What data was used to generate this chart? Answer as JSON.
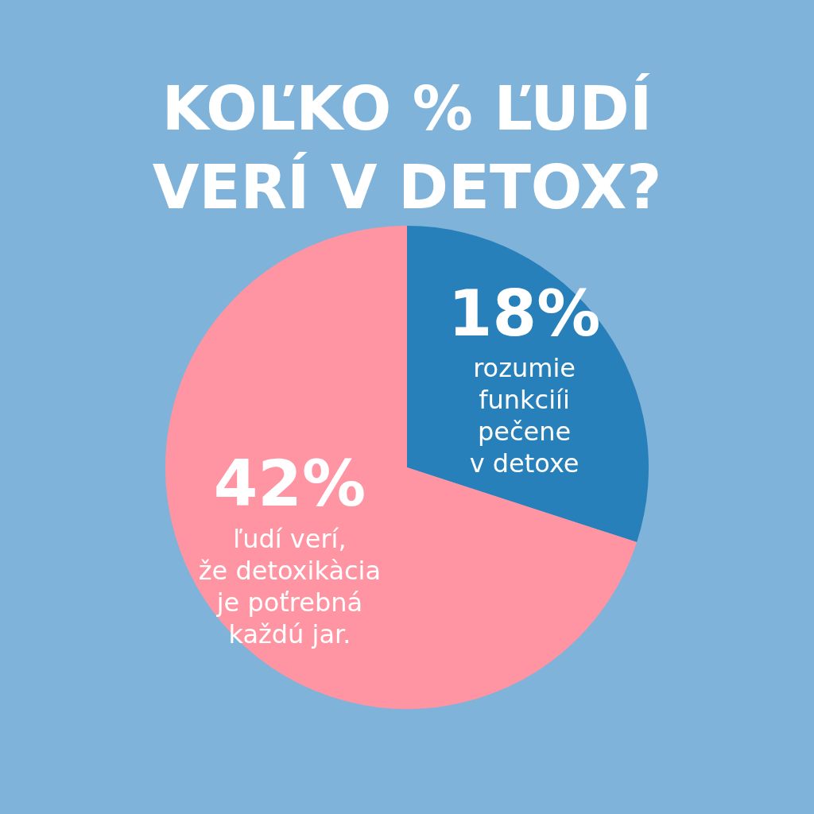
{
  "chart_data": {
    "type": "pie",
    "title": "KOĽKO % ĽUDÍ VERÍ V DETOX?",
    "categories": [
      "rozumie\nfunkciíi\npečene\nv detoxe",
      "ľudí verí,\nže detoxikàcia\nje poťrebná\nkaždú jar."
    ],
    "values": [
      18,
      42
    ],
    "colors": [
      "#2880ba",
      "#ff94a2"
    ],
    "value_labels": [
      "18%",
      "42%"
    ],
    "legend": false
  }
}
